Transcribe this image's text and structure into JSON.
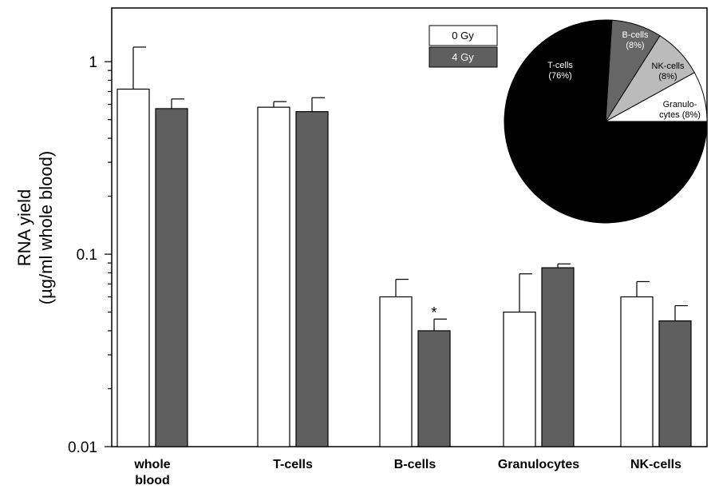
{
  "chart_data": {
    "type": "bar",
    "scale": "log",
    "ylim": [
      0.01,
      1.9
    ],
    "ylabel_line1": "RNA yield",
    "ylabel_line2": "(µg/ml whole blood)",
    "yticks": [
      {
        "value": 0.01,
        "label": "0.01"
      },
      {
        "value": 0.1,
        "label": "0.1"
      },
      {
        "value": 1,
        "label": "1"
      }
    ],
    "categories": [
      {
        "line1": "whole",
        "line2": "blood"
      },
      {
        "line1": "T-cells",
        "line2": ""
      },
      {
        "line1": "B-cells",
        "line2": ""
      },
      {
        "line1": "Granulocytes",
        "line2": ""
      },
      {
        "line1": "NK-cells",
        "line2": ""
      }
    ],
    "series": [
      {
        "name": "0 Gy",
        "color": "#ffffff",
        "values": [
          0.72,
          0.58,
          0.06,
          0.05,
          0.06
        ],
        "errors_upper": [
          1.19,
          0.62,
          0.074,
          0.079,
          0.072
        ]
      },
      {
        "name": "4 Gy",
        "color": "#5f5f5f",
        "values": [
          0.57,
          0.55,
          0.04,
          0.085,
          0.045
        ],
        "errors_upper": [
          0.64,
          0.65,
          0.046,
          0.089,
          0.054
        ]
      }
    ],
    "annotations": [
      {
        "text": "*",
        "category_index": 2,
        "series_index": 1
      }
    ],
    "inset_pie": {
      "type": "pie",
      "slices": [
        {
          "name": "T-cells",
          "pct_label": "(76%)",
          "value": 76,
          "color": "#000000",
          "text_color": "#ffffff"
        },
        {
          "name": "B-cells",
          "pct_label": "(8%)",
          "value": 8,
          "color": "#666666",
          "text_color": "#ffffff"
        },
        {
          "name": "NK-cells",
          "pct_label": "(8%)",
          "value": 8,
          "color": "#bbbbbb",
          "text_color": "#000000"
        },
        {
          "name": "Granulo-",
          "name2": "cytes",
          "pct_label": "(8%)",
          "value": 8,
          "color": "#ffffff",
          "text_color": "#000000"
        }
      ]
    }
  }
}
